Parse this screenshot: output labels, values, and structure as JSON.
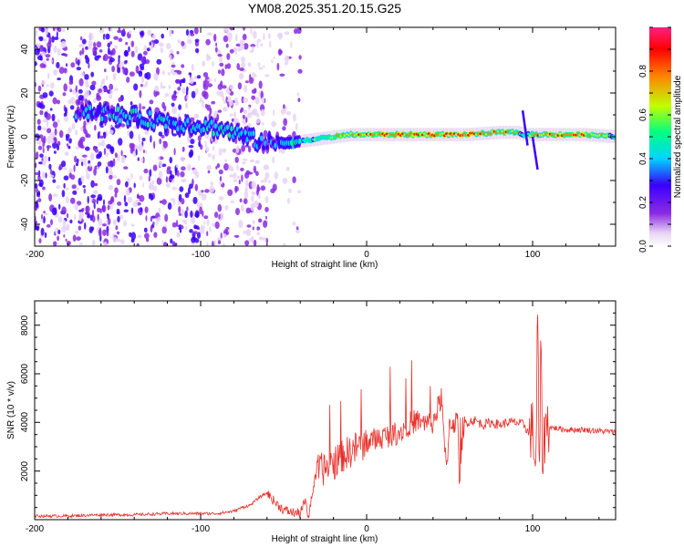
{
  "title": "YM08.2025.351.20.15.G25",
  "chart_data": [
    {
      "type": "heatmap",
      "name": "spectrogram",
      "xlabel": "Height of straight line (km)",
      "ylabel": "Frequency (Hz)",
      "xlim": [
        -200,
        150
      ],
      "ylim": [
        -50,
        50
      ],
      "xticks": [
        -200,
        -100,
        0,
        100
      ],
      "yticks": [
        -40,
        -20,
        0,
        20,
        40
      ],
      "colorbar": {
        "label": "Normalized spectral amplitude",
        "range": [
          0,
          1
        ],
        "ticks": [
          0.0,
          0.2,
          0.4,
          0.6,
          0.8
        ],
        "colors": [
          "#ffffff",
          "#e8d4f4",
          "#8a2be2",
          "#3a00ff",
          "#00d4ff",
          "#00ff80",
          "#c0ff00",
          "#ff8000",
          "#ff0000",
          "#ff2080"
        ]
      },
      "ridge": {
        "x": [
          -170,
          -150,
          -130,
          -110,
          -100,
          -90,
          -80,
          -70,
          -60,
          -50,
          -40,
          -30,
          -20,
          -10,
          0,
          20,
          40,
          60,
          80,
          90,
          95,
          100,
          110,
          130,
          150
        ],
        "freq": [
          12,
          10,
          8,
          6,
          5,
          4,
          2,
          -1,
          -3,
          -3,
          -2,
          -1,
          0,
          1,
          1,
          1,
          1,
          1,
          2,
          2,
          1,
          1,
          1,
          1,
          0
        ],
        "amplitude": [
          0.4,
          0.45,
          0.45,
          0.4,
          0.45,
          0.45,
          0.45,
          0.45,
          0.35,
          0.4,
          0.5,
          0.6,
          0.7,
          0.75,
          0.8,
          0.85,
          0.85,
          0.85,
          0.8,
          0.75,
          0.6,
          0.7,
          0.85,
          0.8,
          0.6
        ]
      }
    },
    {
      "type": "line",
      "name": "snr",
      "xlabel": "Height of straight line (km)",
      "ylabel": "SNR (10 * v/v)",
      "xlim": [
        -200,
        150
      ],
      "ylim": [
        0,
        9000
      ],
      "xticks": [
        -200,
        -100,
        0,
        100
      ],
      "yticks": [
        2000,
        4000,
        6000,
        8000
      ],
      "color": "#e8302a",
      "series": [
        {
          "name": "SNR",
          "x": [
            -200,
            -180,
            -160,
            -140,
            -120,
            -100,
            -90,
            -80,
            -75,
            -70,
            -65,
            -60,
            -55,
            -50,
            -45,
            -40,
            -37,
            -35,
            -33,
            -30,
            -25,
            -20,
            -15,
            -10,
            -5,
            0,
            5,
            10,
            15,
            20,
            25,
            30,
            35,
            40,
            45,
            48,
            50,
            55,
            56,
            58,
            60,
            65,
            70,
            75,
            80,
            85,
            90,
            95,
            98,
            100,
            102,
            103,
            104,
            105,
            106,
            108,
            110,
            120,
            130,
            140,
            150
          ],
          "y": [
            150,
            150,
            200,
            200,
            250,
            250,
            250,
            350,
            500,
            600,
            900,
            1100,
            700,
            400,
            300,
            250,
            800,
            100,
            1000,
            2000,
            2100,
            2300,
            2600,
            2800,
            3000,
            3200,
            3300,
            3400,
            3500,
            3600,
            3900,
            4100,
            3900,
            4000,
            5000,
            2000,
            4000,
            4000,
            1500,
            3800,
            4000,
            4100,
            3900,
            4000,
            3900,
            4000,
            4000,
            3900,
            3500,
            3800,
            2000,
            8800,
            1500,
            7000,
            2500,
            4000,
            3800,
            3700,
            3700,
            3650,
            3600
          ]
        }
      ]
    }
  ]
}
